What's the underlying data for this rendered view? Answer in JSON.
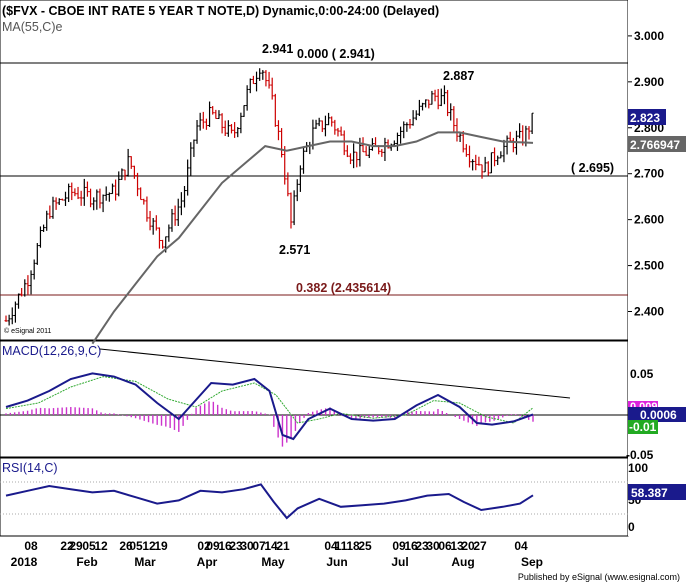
{
  "header": {
    "title": "($FVX - CBOE INT RATE 5 YEAR T NOTE,D) Dynamic,0:00-24:00 (Delayed)",
    "ma_label": "MA(55,C)e"
  },
  "watermark": "© eSignal 2011",
  "footer": "Published by eSignal (www.esignal.com)",
  "price_panel": {
    "ticks": [
      "3.000",
      "2.900",
      "2.800",
      "2.700",
      "2.600",
      "2.500",
      "2.400"
    ],
    "last_price": "2.823",
    "ma_value": "2.766947",
    "labels": {
      "high": "2.941",
      "fib0": "0.000 ( 2.941)",
      "high2": "2.887",
      "support": "( 2.695)",
      "low": "2.571",
      "fib382": "0.382 (2.435614)"
    }
  },
  "macd_panel": {
    "label": "MACD(12,26,9,C)",
    "ticks": [
      "0.05",
      "-0.05"
    ],
    "macd_value": "0.0006",
    "signal_value": "0.009",
    "hist_value": "-0.01"
  },
  "rsi_panel": {
    "label": "RSI(14,C)",
    "ticks": [
      "100",
      "50",
      "0"
    ],
    "rsi_value": "58.387"
  },
  "xaxis": {
    "day_labels": [
      "08",
      "22",
      "29",
      "05",
      "12",
      "26",
      "05",
      "12",
      "19",
      "02",
      "09",
      "16",
      "23",
      "30",
      "07",
      "14",
      "21",
      "04",
      "11",
      "18",
      "25",
      "09",
      "16",
      "23",
      "30",
      "06",
      "13",
      "20",
      "27",
      "04"
    ],
    "month_labels": [
      "2018",
      "Feb",
      "Mar",
      "Apr",
      "May",
      "Jun",
      "Jul",
      "Aug",
      "Sep"
    ]
  },
  "colors": {
    "up": "#000000",
    "down": "#cc0000",
    "ma": "#666666",
    "macd": "#1a1a8c",
    "signal": "#33aa33",
    "hist": "#cc33cc",
    "rsi": "#1a1a8c",
    "last_bg": "#1a1a8c",
    "ma_bg": "#666666",
    "signal_bg": "#dd22dd",
    "hist_bg": "#22aa22"
  },
  "chart_data": {
    "type": "candlestick",
    "x": [
      "2018-01-08",
      "2018-09-06"
    ],
    "ylim": [
      2.33,
      3.05
    ],
    "horizontal_levels": [
      2.941,
      2.695,
      2.435614
    ],
    "price_series": [
      {
        "d": 0,
        "v": 2.38
      },
      {
        "d": 10,
        "v": 2.47
      },
      {
        "d": 20,
        "v": 2.62
      },
      {
        "d": 30,
        "v": 2.66
      },
      {
        "d": 40,
        "v": 2.65
      },
      {
        "d": 50,
        "v": 2.66
      },
      {
        "d": 57,
        "v": 2.73
      },
      {
        "d": 65,
        "v": 2.62
      },
      {
        "d": 72,
        "v": 2.55
      },
      {
        "d": 82,
        "v": 2.65
      },
      {
        "d": 88,
        "v": 2.8
      },
      {
        "d": 95,
        "v": 2.83
      },
      {
        "d": 105,
        "v": 2.78
      },
      {
        "d": 112,
        "v": 2.88
      },
      {
        "d": 118,
        "v": 2.941
      },
      {
        "d": 123,
        "v": 2.86
      },
      {
        "d": 128,
        "v": 2.74
      },
      {
        "d": 132,
        "v": 2.59
      },
      {
        "d": 136,
        "v": 2.72
      },
      {
        "d": 142,
        "v": 2.79
      },
      {
        "d": 150,
        "v": 2.82
      },
      {
        "d": 160,
        "v": 2.74
      },
      {
        "d": 170,
        "v": 2.75
      },
      {
        "d": 180,
        "v": 2.78
      },
      {
        "d": 190,
        "v": 2.83
      },
      {
        "d": 198,
        "v": 2.87
      },
      {
        "d": 203,
        "v": 2.86
      },
      {
        "d": 208,
        "v": 2.8
      },
      {
        "d": 215,
        "v": 2.74
      },
      {
        "d": 222,
        "v": 2.71
      },
      {
        "d": 228,
        "v": 2.75
      },
      {
        "d": 235,
        "v": 2.77
      },
      {
        "d": 240,
        "v": 2.78
      },
      {
        "d": 244,
        "v": 2.82
      }
    ],
    "ma_series": [
      {
        "d": 40,
        "v": 2.33
      },
      {
        "d": 50,
        "v": 2.4
      },
      {
        "d": 60,
        "v": 2.46
      },
      {
        "d": 70,
        "v": 2.52
      },
      {
        "d": 80,
        "v": 2.56
      },
      {
        "d": 90,
        "v": 2.62
      },
      {
        "d": 100,
        "v": 2.68
      },
      {
        "d": 110,
        "v": 2.72
      },
      {
        "d": 120,
        "v": 2.76
      },
      {
        "d": 130,
        "v": 2.75
      },
      {
        "d": 140,
        "v": 2.76
      },
      {
        "d": 150,
        "v": 2.77
      },
      {
        "d": 160,
        "v": 2.77
      },
      {
        "d": 170,
        "v": 2.76
      },
      {
        "d": 180,
        "v": 2.76
      },
      {
        "d": 190,
        "v": 2.77
      },
      {
        "d": 200,
        "v": 2.79
      },
      {
        "d": 210,
        "v": 2.79
      },
      {
        "d": 220,
        "v": 2.78
      },
      {
        "d": 230,
        "v": 2.77
      },
      {
        "d": 244,
        "v": 2.767
      }
    ],
    "macd_series": [
      {
        "d": 0,
        "v": 0.01
      },
      {
        "d": 10,
        "v": 0.018
      },
      {
        "d": 20,
        "v": 0.03
      },
      {
        "d": 30,
        "v": 0.045
      },
      {
        "d": 40,
        "v": 0.052
      },
      {
        "d": 50,
        "v": 0.048
      },
      {
        "d": 60,
        "v": 0.038
      },
      {
        "d": 70,
        "v": 0.015
      },
      {
        "d": 80,
        "v": -0.005
      },
      {
        "d": 85,
        "v": 0.01
      },
      {
        "d": 95,
        "v": 0.04
      },
      {
        "d": 105,
        "v": 0.038
      },
      {
        "d": 115,
        "v": 0.045
      },
      {
        "d": 122,
        "v": 0.03
      },
      {
        "d": 128,
        "v": -0.025
      },
      {
        "d": 133,
        "v": -0.03
      },
      {
        "d": 140,
        "v": -0.005
      },
      {
        "d": 150,
        "v": 0.008
      },
      {
        "d": 160,
        "v": -0.005
      },
      {
        "d": 170,
        "v": -0.007
      },
      {
        "d": 180,
        "v": -0.005
      },
      {
        "d": 190,
        "v": 0.012
      },
      {
        "d": 200,
        "v": 0.025
      },
      {
        "d": 210,
        "v": 0.01
      },
      {
        "d": 218,
        "v": -0.01
      },
      {
        "d": 225,
        "v": -0.012
      },
      {
        "d": 235,
        "v": -0.008
      },
      {
        "d": 244,
        "v": 0.0006
      }
    ],
    "signal_series": [
      {
        "d": 0,
        "v": 0.008
      },
      {
        "d": 15,
        "v": 0.015
      },
      {
        "d": 30,
        "v": 0.035
      },
      {
        "d": 45,
        "v": 0.048
      },
      {
        "d": 60,
        "v": 0.042
      },
      {
        "d": 75,
        "v": 0.02
      },
      {
        "d": 88,
        "v": 0.01
      },
      {
        "d": 100,
        "v": 0.03
      },
      {
        "d": 115,
        "v": 0.04
      },
      {
        "d": 125,
        "v": 0.025
      },
      {
        "d": 135,
        "v": -0.01
      },
      {
        "d": 145,
        "v": -0.005
      },
      {
        "d": 155,
        "v": 0.002
      },
      {
        "d": 170,
        "v": -0.004
      },
      {
        "d": 185,
        "v": 0.0
      },
      {
        "d": 198,
        "v": 0.018
      },
      {
        "d": 210,
        "v": 0.015
      },
      {
        "d": 222,
        "v": -0.002
      },
      {
        "d": 235,
        "v": -0.01
      },
      {
        "d": 244,
        "v": 0.009
      }
    ],
    "rsi_series": [
      {
        "d": 0,
        "v": 58
      },
      {
        "d": 10,
        "v": 64
      },
      {
        "d": 20,
        "v": 70
      },
      {
        "d": 30,
        "v": 66
      },
      {
        "d": 40,
        "v": 62
      },
      {
        "d": 50,
        "v": 64
      },
      {
        "d": 60,
        "v": 56
      },
      {
        "d": 70,
        "v": 48
      },
      {
        "d": 80,
        "v": 52
      },
      {
        "d": 90,
        "v": 64
      },
      {
        "d": 100,
        "v": 62
      },
      {
        "d": 110,
        "v": 66
      },
      {
        "d": 118,
        "v": 72
      },
      {
        "d": 124,
        "v": 50
      },
      {
        "d": 130,
        "v": 30
      },
      {
        "d": 135,
        "v": 42
      },
      {
        "d": 145,
        "v": 54
      },
      {
        "d": 155,
        "v": 44
      },
      {
        "d": 165,
        "v": 46
      },
      {
        "d": 175,
        "v": 48
      },
      {
        "d": 185,
        "v": 52
      },
      {
        "d": 195,
        "v": 58
      },
      {
        "d": 205,
        "v": 60
      },
      {
        "d": 212,
        "v": 50
      },
      {
        "d": 220,
        "v": 40
      },
      {
        "d": 230,
        "v": 44
      },
      {
        "d": 238,
        "v": 48
      },
      {
        "d": 244,
        "v": 58.387
      }
    ]
  }
}
